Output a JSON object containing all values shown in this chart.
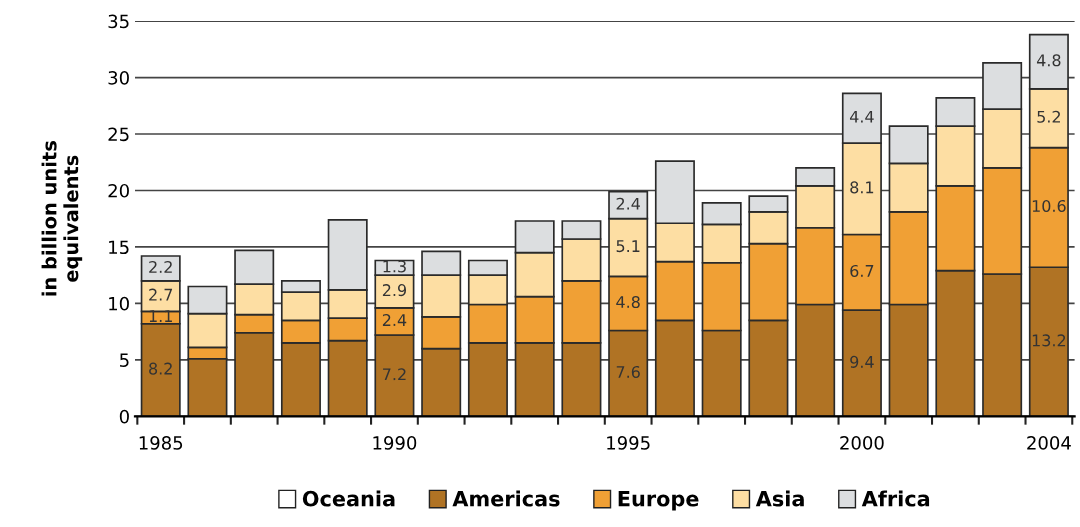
{
  "chart_data": {
    "type": "bar",
    "stacked": true,
    "ylabel": "in billion units\nequivalents",
    "categories": [
      "1985",
      null,
      null,
      null,
      null,
      "1990",
      null,
      null,
      null,
      null,
      "1995",
      null,
      null,
      null,
      null,
      "2000",
      null,
      null,
      null,
      "2004"
    ],
    "series": [
      {
        "name": "Oceania",
        "color": "#ffffff",
        "values": [
          null,
          null,
          null,
          null,
          null,
          null,
          null,
          null,
          null,
          null,
          null,
          null,
          null,
          null,
          null,
          null,
          null,
          null,
          null,
          null
        ]
      },
      {
        "name": "Americas",
        "color": "#b07324",
        "values": [
          8.2,
          5.1,
          7.4,
          6.5,
          6.7,
          7.2,
          6.0,
          6.5,
          6.5,
          6.5,
          7.6,
          8.5,
          7.6,
          8.5,
          9.9,
          9.4,
          9.9,
          12.9,
          12.6,
          13.2
        ],
        "value_labels": [
          "8.2",
          null,
          null,
          null,
          null,
          "7.2",
          null,
          null,
          null,
          null,
          "7.6",
          null,
          null,
          null,
          null,
          "9.4",
          null,
          null,
          null,
          "13.2"
        ]
      },
      {
        "name": "Europe",
        "color": "#f0a035",
        "values": [
          1.1,
          1.0,
          1.6,
          2.0,
          2.0,
          2.4,
          2.8,
          3.4,
          4.1,
          5.5,
          4.8,
          5.2,
          6.0,
          6.8,
          6.8,
          6.7,
          8.2,
          7.5,
          9.4,
          10.6
        ],
        "value_labels": [
          "1.1",
          null,
          null,
          null,
          null,
          "2.4",
          null,
          null,
          null,
          null,
          "4.8",
          null,
          null,
          null,
          null,
          "6.7",
          null,
          null,
          null,
          "10.6"
        ]
      },
      {
        "name": "Asia",
        "color": "#fddea3",
        "values": [
          2.7,
          3.0,
          2.7,
          2.5,
          2.5,
          2.9,
          3.7,
          2.6,
          3.9,
          3.7,
          5.1,
          3.4,
          3.4,
          2.8,
          3.7,
          8.1,
          4.3,
          5.3,
          5.2,
          5.2
        ],
        "value_labels": [
          "2.7",
          null,
          null,
          null,
          null,
          "2.9",
          null,
          null,
          null,
          null,
          "5.1",
          null,
          null,
          null,
          null,
          "8.1",
          null,
          null,
          null,
          "5.2"
        ]
      },
      {
        "name": "Africa",
        "color": "#dcdee0",
        "values": [
          2.2,
          2.4,
          3.0,
          1.0,
          6.2,
          1.3,
          2.1,
          1.3,
          2.8,
          1.6,
          2.4,
          5.5,
          1.9,
          1.4,
          1.6,
          4.4,
          3.3,
          2.5,
          4.1,
          4.8
        ],
        "value_labels": [
          "2.2",
          null,
          null,
          null,
          null,
          "1.3",
          null,
          null,
          null,
          null,
          "2.4",
          null,
          null,
          null,
          null,
          "4.4",
          null,
          null,
          null,
          "4.8"
        ]
      }
    ],
    "ylim": [
      0,
      35
    ],
    "yticks": [
      0,
      5,
      10,
      15,
      20,
      25,
      30,
      35
    ],
    "grid": "y",
    "legend": "bottom"
  }
}
